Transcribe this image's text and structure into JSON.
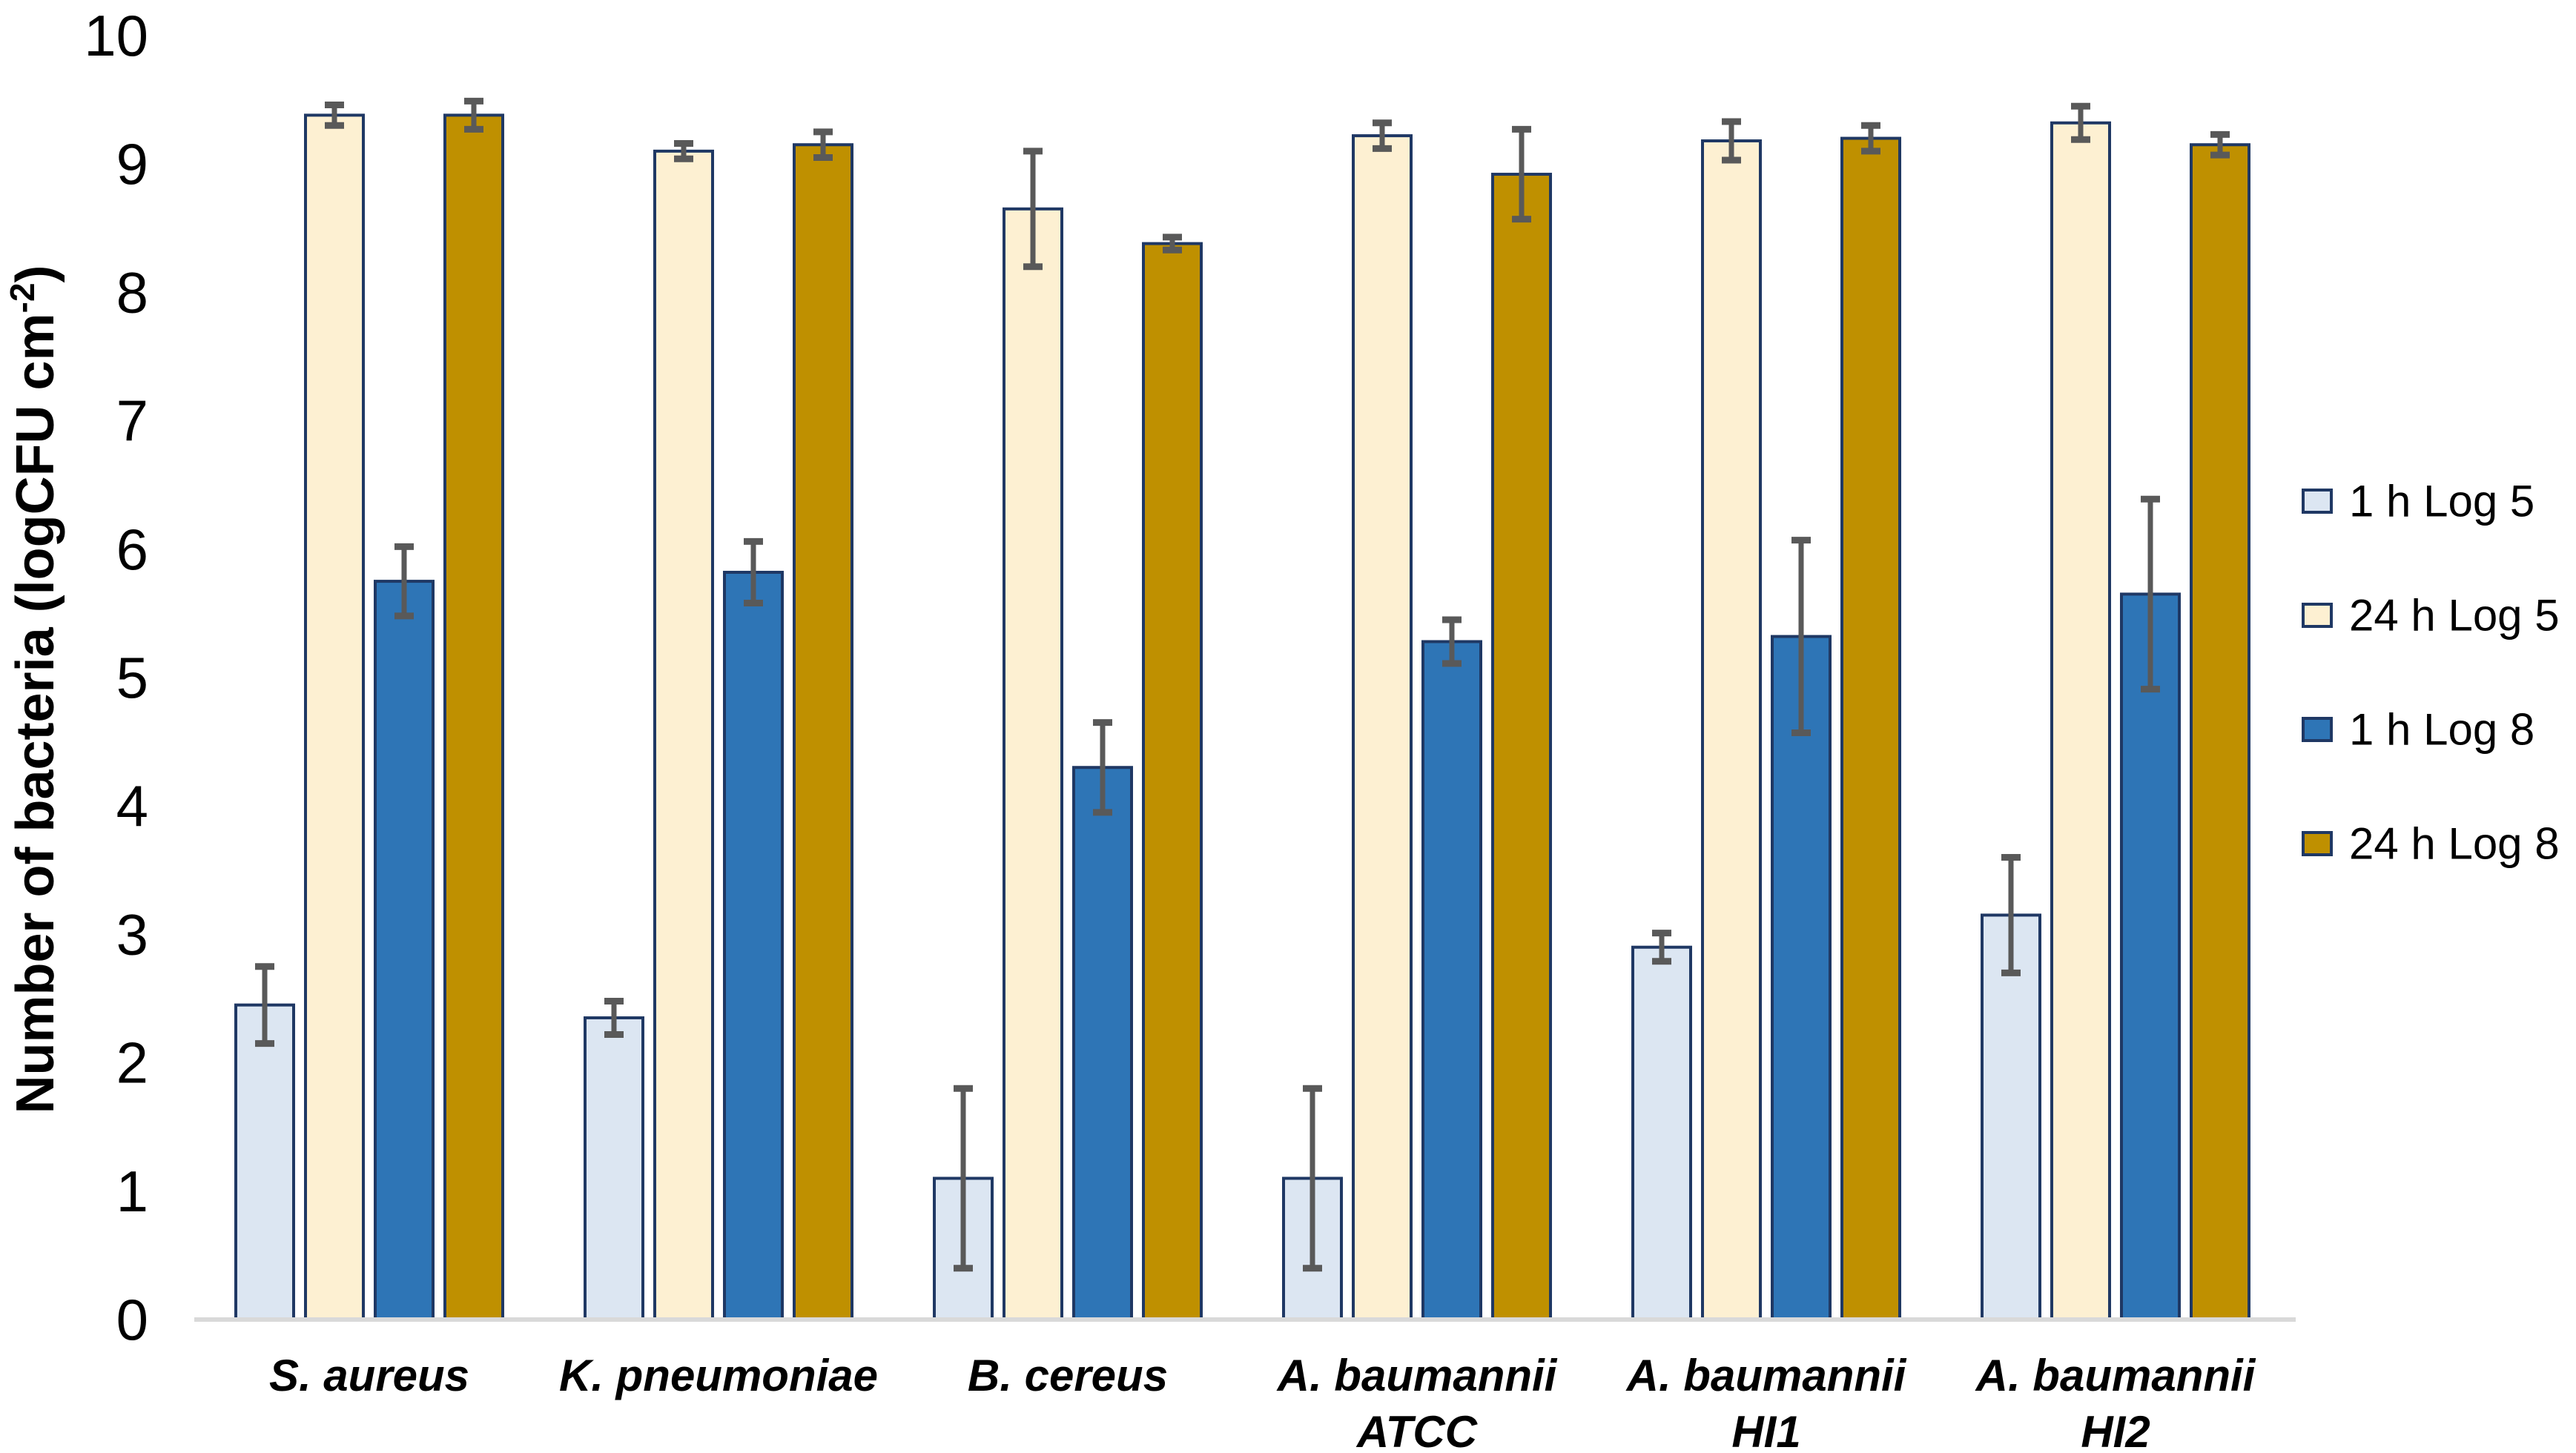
{
  "figure": {
    "background": "#ffffff",
    "text_color": "#000000",
    "error_bar_color": "#595959",
    "axis_line_color": "#d9d9d9",
    "bar_border_color": "#1f3864"
  },
  "chart_data": {
    "type": "bar",
    "title": "",
    "xlabel": "",
    "ylabel": "Number of bacteria (logCFU cm⁻²)",
    "ylabel_parts": {
      "prefix": "Number of bacteria (logCFU cm",
      "superscript": "-2",
      "suffix": ")"
    },
    "ylim": [
      0,
      10
    ],
    "yticks": [
      0,
      1,
      2,
      3,
      4,
      5,
      6,
      7,
      8,
      9,
      10
    ],
    "grid": false,
    "legend_position": "right",
    "error_bars": true,
    "categories": [
      "S. aureus",
      "K. pneumoniae",
      "B. cereus",
      "A. baumannii\nATCC",
      "A. baumannii\nHI1",
      "A. baumannii\nHI2"
    ],
    "series": [
      {
        "name": "1 h Log 5",
        "fill": "#dce6f2",
        "border": "#1f3864",
        "values": [
          2.45,
          2.35,
          1.1,
          1.1,
          2.9,
          3.15
        ],
        "errors": [
          0.3,
          0.13,
          0.7,
          0.7,
          0.11,
          0.45
        ]
      },
      {
        "name": "24 h Log 5",
        "fill": "#fdf0d2",
        "border": "#1f3864",
        "values": [
          9.38,
          9.1,
          8.65,
          9.22,
          9.18,
          9.32
        ],
        "errors": [
          0.08,
          0.06,
          0.45,
          0.1,
          0.15,
          0.13
        ]
      },
      {
        "name": "1 h Log 8",
        "fill": "#2e75b6",
        "border": "#1f3864",
        "values": [
          5.75,
          5.82,
          4.3,
          5.28,
          5.32,
          5.65
        ],
        "errors": [
          0.27,
          0.24,
          0.35,
          0.17,
          0.75,
          0.74
        ]
      },
      {
        "name": "24 h Log 8",
        "fill": "#bf9000",
        "border": "#1f3864",
        "values": [
          9.38,
          9.15,
          8.38,
          8.92,
          9.2,
          9.15
        ],
        "errors": [
          0.11,
          0.1,
          0.05,
          0.35,
          0.1,
          0.08
        ]
      }
    ]
  }
}
